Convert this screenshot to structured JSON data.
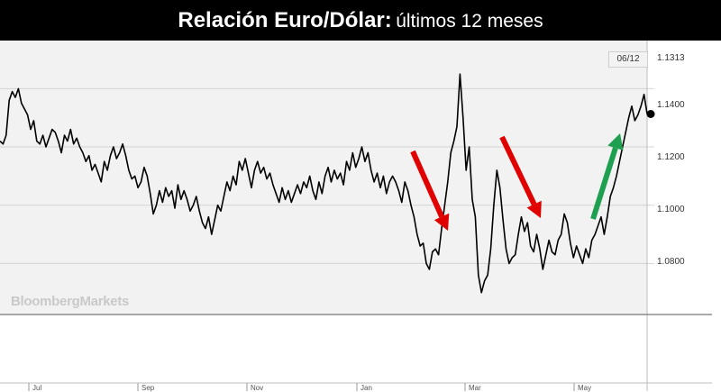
{
  "title": {
    "bold": "Relación Euro/Dólar:",
    "regular": "últimos 12 meses"
  },
  "watermark": "BloombergMarkets",
  "last_date": "06/12",
  "colors": {
    "title_bg": "#000000",
    "title_text": "#ffffff",
    "line": "#000000",
    "arrow_down": "#e00000",
    "arrow_up": "#1fa050",
    "plot_bg": "#f2f2f2"
  },
  "chart_data": {
    "type": "line",
    "last_value_label": "1.1313",
    "y_ticks": [
      "1.1400",
      "1.1200",
      "1.1000",
      "1.0800"
    ],
    "x_ticks": [
      "Jul",
      "Sep",
      "Nov",
      "Jan",
      "Mar",
      "May"
    ],
    "ylim": [
      1.0625,
      1.1565
    ],
    "grid": true,
    "series": [
      {
        "values": [
          1.122,
          1.121,
          1.124,
          1.136,
          1.139,
          1.137,
          1.14,
          1.135,
          1.133,
          1.131,
          1.126,
          1.129,
          1.122,
          1.121,
          1.124,
          1.12,
          1.123,
          1.126,
          1.125,
          1.122,
          1.118,
          1.124,
          1.122,
          1.126,
          1.121,
          1.123,
          1.12,
          1.118,
          1.115,
          1.117,
          1.112,
          1.114,
          1.111,
          1.108,
          1.115,
          1.112,
          1.117,
          1.12,
          1.116,
          1.118,
          1.121,
          1.117,
          1.112,
          1.109,
          1.11,
          1.106,
          1.108,
          1.113,
          1.11,
          1.104,
          1.097,
          1.1,
          1.105,
          1.101,
          1.106,
          1.103,
          1.105,
          1.099,
          1.107,
          1.102,
          1.105,
          1.102,
          1.098,
          1.1,
          1.103,
          1.098,
          1.094,
          1.092,
          1.096,
          1.09,
          1.095,
          1.1,
          1.098,
          1.103,
          1.108,
          1.105,
          1.11,
          1.107,
          1.115,
          1.112,
          1.116,
          1.111,
          1.106,
          1.112,
          1.115,
          1.111,
          1.113,
          1.109,
          1.111,
          1.107,
          1.104,
          1.101,
          1.106,
          1.102,
          1.105,
          1.101,
          1.104,
          1.107,
          1.104,
          1.108,
          1.106,
          1.11,
          1.105,
          1.102,
          1.108,
          1.104,
          1.11,
          1.113,
          1.108,
          1.112,
          1.109,
          1.111,
          1.107,
          1.115,
          1.112,
          1.118,
          1.113,
          1.116,
          1.12,
          1.115,
          1.118,
          1.112,
          1.108,
          1.111,
          1.106,
          1.11,
          1.104,
          1.108,
          1.11,
          1.108,
          1.105,
          1.101,
          1.108,
          1.105,
          1.1,
          1.096,
          1.09,
          1.086,
          1.087,
          1.08,
          1.078,
          1.084,
          1.085,
          1.083,
          1.092,
          1.1,
          1.108,
          1.118,
          1.122,
          1.127,
          1.145,
          1.13,
          1.112,
          1.12,
          1.102,
          1.096,
          1.076,
          1.07,
          1.074,
          1.076,
          1.085,
          1.1,
          1.112,
          1.106,
          1.095,
          1.085,
          1.08,
          1.082,
          1.083,
          1.09,
          1.096,
          1.091,
          1.094,
          1.086,
          1.084,
          1.09,
          1.085,
          1.078,
          1.083,
          1.088,
          1.084,
          1.083,
          1.088,
          1.09,
          1.097,
          1.094,
          1.087,
          1.082,
          1.086,
          1.083,
          1.08,
          1.085,
          1.082,
          1.088,
          1.09,
          1.093,
          1.096,
          1.09,
          1.096,
          1.103,
          1.106,
          1.11,
          1.115,
          1.12,
          1.125,
          1.13,
          1.134,
          1.129,
          1.131,
          1.134,
          1.138,
          1.1313
        ]
      }
    ],
    "annotations": [
      {
        "type": "arrow",
        "direction": "down",
        "color": "red"
      },
      {
        "type": "arrow",
        "direction": "down",
        "color": "red"
      },
      {
        "type": "arrow",
        "direction": "up",
        "color": "green"
      }
    ]
  }
}
